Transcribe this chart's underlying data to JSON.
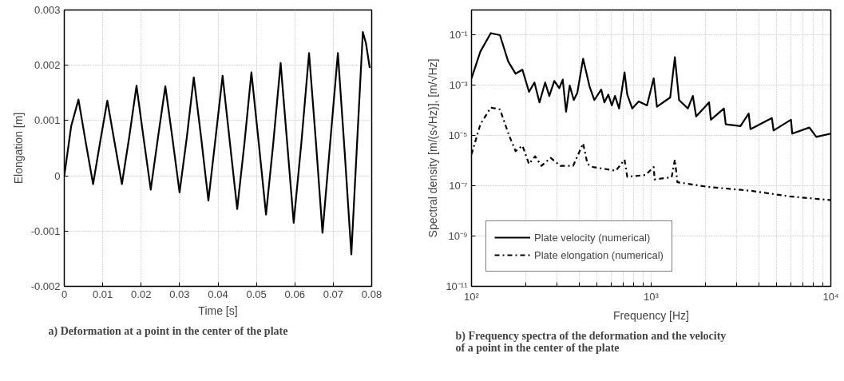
{
  "chart_data": [
    {
      "type": "line",
      "title": "a) Deformation at a point in the center of the plate",
      "xlabel": "Time [s]",
      "ylabel": "Elongation [m]",
      "xlim": [
        0,
        0.08
      ],
      "ylim": [
        -0.002,
        0.003
      ],
      "xticks": [
        0,
        0.01,
        0.02,
        0.03,
        0.04,
        0.05,
        0.06,
        0.07,
        0.08
      ],
      "yticks": [
        -0.002,
        -0.001,
        0,
        0.001,
        0.002,
        0.003
      ],
      "grid": true,
      "legend": false,
      "series": [
        {
          "color": "#000000",
          "line_style": "solid",
          "x": [
            0,
            0.0018,
            0.0037,
            0.0056,
            0.0075,
            0.0093,
            0.0112,
            0.0131,
            0.015,
            0.0169,
            0.0188,
            0.0206,
            0.0225,
            0.0244,
            0.0263,
            0.0281,
            0.03,
            0.0319,
            0.0337,
            0.0356,
            0.0375,
            0.0394,
            0.0412,
            0.0431,
            0.045,
            0.0469,
            0.0487,
            0.0506,
            0.0525,
            0.0544,
            0.0563,
            0.058,
            0.0597,
            0.0617,
            0.0637,
            0.0655,
            0.0672,
            0.0692,
            0.0712,
            0.073,
            0.0747,
            0.0762,
            0.0777,
            0.0785,
            0.0795
          ],
          "values": [
            0,
            0.0009,
            0.00138,
            0.0006,
            -0.00015,
            0.0006,
            0.00136,
            0.0006,
            -0.00015,
            0.0007,
            0.00163,
            0.0007,
            -0.00025,
            0.0007,
            0.00162,
            0.0007,
            -0.0003,
            0.0007,
            0.00178,
            0.0007,
            -0.00045,
            0.0007,
            0.00181,
            0.0006,
            -0.0006,
            0.0006,
            0.00187,
            0.0006,
            -0.0007,
            0.0006,
            0.00204,
            0.0006,
            -0.00085,
            0.0006,
            0.00222,
            0.0006,
            -0.00103,
            0.0006,
            0.00222,
            0.0004,
            -0.00142,
            0.0006,
            0.0026,
            0.0024,
            0.00195
          ]
        }
      ]
    },
    {
      "type": "line",
      "title": "b) Frequency spectra of the deformation and the velocity of a point in the center of the plate",
      "xlabel": "Frequency [Hz]",
      "ylabel": "Spectral density [m/(s√Hz)], [m/√Hz]",
      "log": "xy",
      "xlim": [
        100,
        10000
      ],
      "ylim": [
        1e-11,
        1
      ],
      "xticks": [
        {
          "value": 100,
          "label": "10²"
        },
        {
          "value": 200,
          "label": null
        },
        {
          "value": 300,
          "label": null
        },
        {
          "value": 400,
          "label": null
        },
        {
          "value": 500,
          "label": null
        },
        {
          "value": 600,
          "label": null
        },
        {
          "value": 700,
          "label": null
        },
        {
          "value": 800,
          "label": null
        },
        {
          "value": 900,
          "label": null
        },
        {
          "value": 1000,
          "label": "10³"
        },
        {
          "value": 2000,
          "label": null
        },
        {
          "value": 3000,
          "label": null
        },
        {
          "value": 4000,
          "label": null
        },
        {
          "value": 5000,
          "label": null
        },
        {
          "value": 6000,
          "label": null
        },
        {
          "value": 7000,
          "label": null
        },
        {
          "value": 8000,
          "label": null
        },
        {
          "value": 9000,
          "label": null
        },
        {
          "value": 10000,
          "label": "10⁴"
        }
      ],
      "yticks": [
        {
          "value": 1e-11,
          "label": "10⁻¹¹"
        },
        {
          "value": 1e-09,
          "label": "10⁻⁹"
        },
        {
          "value": 1e-07,
          "label": "10⁻⁷"
        },
        {
          "value": 1e-05,
          "label": "10⁻⁵"
        },
        {
          "value": 0.001,
          "label": "10⁻³"
        },
        {
          "value": 0.1,
          "label": "10⁻¹"
        }
      ],
      "grid": true,
      "legend": "bottom left",
      "series": [
        {
          "name": "Plate velocity (numerical)",
          "color": "#000000",
          "line_style": "solid",
          "x": [
            100,
            112,
            128,
            144,
            160,
            176,
            192,
            209,
            224,
            239,
            257,
            271,
            289,
            308,
            322,
            336,
            352,
            371,
            388,
            418,
            454,
            483,
            527,
            549,
            577,
            604,
            629,
            663,
            711,
            736,
            785,
            852,
            948,
            1033,
            1077,
            1276,
            1355,
            1430,
            1600,
            1706,
            1780,
            2100,
            2150,
            2540,
            2600,
            3140,
            3490,
            3570,
            4700,
            4800,
            6000,
            6100,
            7600,
            8300,
            10000
          ],
          "values": [
            0.0019,
            0.022,
            0.12,
            0.1,
            0.009,
            0.0029,
            0.0042,
            0.00055,
            0.0013,
            0.00021,
            0.0013,
            0.00038,
            0.0015,
            0.00078,
            0.0017,
            8.9e-05,
            0.00098,
            0.00026,
            0.0005,
            0.0115,
            0.0009,
            0.00026,
            0.00068,
            0.00021,
            0.00043,
            0.00016,
            0.00038,
            0.00012,
            0.0033,
            0.00043,
            0.00012,
            0.00023,
            0.00016,
            0.0019,
            0.00014,
            0.00033,
            0.0132,
            0.00026,
            0.00012,
            0.00038,
            5.8e-05,
            0.00021,
            4.3e-05,
            0.00012,
            2.8e-05,
            2.4e-05,
            7.6e-05,
            1.8e-05,
            5e-05,
            1.6e-05,
            4.3e-05,
            1.2e-05,
            2.1e-05,
            8.9e-06,
            1.2e-05
          ]
        },
        {
          "name": "Plate elongation (numerical)",
          "color": "#000000",
          "line_style": "dashdot",
          "x": [
            100,
            112,
            128,
            144,
            162,
            176,
            192,
            209,
            226,
            245,
            276,
            312,
            368,
            418,
            442,
            474,
            636,
            711,
            736,
            930,
            1033,
            1045,
            1300,
            1355,
            1400,
            2070,
            3570,
            5900,
            10000
          ],
          "values": [
            1.8e-06,
            2.8e-05,
            0.00013,
            0.00011,
            1e-05,
            2.4e-06,
            4e-06,
            7.4e-07,
            1.5e-06,
            6.3e-07,
            1.3e-06,
            6.3e-07,
            6.3e-07,
            4.9e-06,
            7.4e-07,
            5.6e-07,
            4e-07,
            1.1e-06,
            2.3e-07,
            2.7e-07,
            5.6e-07,
            1.8e-07,
            2.2e-07,
            1.1e-06,
            1.4e-07,
            9.1e-08,
            6.4e-08,
            3.8e-08,
            2.7e-08
          ]
        }
      ]
    }
  ]
}
